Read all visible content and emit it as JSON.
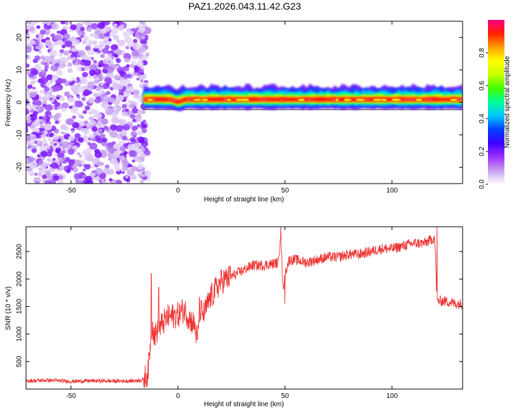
{
  "figure_title": "PAZ1.2026.043.11.42.G23",
  "chart_data": [
    {
      "type": "heatmap",
      "title": "PAZ1.2026.043.11.42.G23",
      "xlabel": "Height of straight line (km)",
      "ylabel": "Frequency (Hz)",
      "xlim": [
        -71,
        133
      ],
      "ylim": [
        -25,
        25
      ],
      "x_ticks": [
        -50,
        0,
        50,
        100
      ],
      "y_ticks": [
        -20,
        -10,
        0,
        10,
        20
      ],
      "colorbar": {
        "label": "Normalized spectral amplitude",
        "range": [
          0,
          1
        ],
        "ticks": [
          "0.0",
          "0.2",
          "0.4",
          "0.6",
          "0.8"
        ],
        "colors": [
          "#ffffff",
          "#c8a0f0",
          "#9b30ff",
          "#3c00ff",
          "#0040ff",
          "#00c8ff",
          "#00ff9c",
          "#40ff00",
          "#c8ff00",
          "#ffff00",
          "#ffa000",
          "#ff2000",
          "#ff0080"
        ]
      },
      "noise_region_km": [
        -71,
        -16
      ],
      "ridge": {
        "start_km": -16,
        "end_km": 133,
        "frequency_hz": 0.8,
        "spread_hz": 3,
        "dip": {
          "at_km": 0,
          "frequency_hz": 0
        }
      }
    },
    {
      "type": "line",
      "xlabel": "Height of straight line (km)",
      "ylabel": "SNR (10 * v/v)",
      "xlim": [
        -71,
        133
      ],
      "ylim": [
        0,
        2950
      ],
      "x_ticks": [
        -50,
        0,
        50,
        100
      ],
      "y_ticks": [
        500,
        1000,
        1500,
        2000,
        2500
      ],
      "series": [
        {
          "name": "SNR",
          "color": "#ee3333",
          "x": [
            -71,
            -60,
            -50,
            -40,
            -30,
            -20,
            -16,
            -14,
            -13,
            -12,
            -11,
            -10,
            -8,
            -5,
            0,
            3,
            5,
            8,
            9,
            10,
            12,
            15,
            20,
            25,
            30,
            35,
            40,
            45,
            47,
            48,
            49,
            50,
            52,
            55,
            60,
            65,
            70,
            75,
            80,
            85,
            90,
            95,
            100,
            105,
            110,
            115,
            120,
            121,
            125,
            130,
            133
          ],
          "y": [
            150,
            160,
            140,
            150,
            145,
            150,
            170,
            300,
            800,
            1200,
            950,
            1050,
            1150,
            1300,
            1350,
            1450,
            1300,
            1150,
            800,
            1450,
            1350,
            1650,
            1950,
            2050,
            2150,
            2250,
            2250,
            2280,
            2300,
            2900,
            1800,
            2100,
            2350,
            2350,
            2300,
            2350,
            2400,
            2400,
            2450,
            2450,
            2500,
            2550,
            2550,
            2600,
            2650,
            2650,
            2750,
            1600,
            1600,
            1550,
            1550
          ],
          "noise_amplitude": 60,
          "spikes": [
            {
              "x": -12.5,
              "y": 2100
            },
            {
              "x": -9,
              "y": 1850
            },
            {
              "x": 48,
              "y": 2950
            },
            {
              "x": 50,
              "y": 1550
            },
            {
              "x": 121,
              "y": 3000
            }
          ]
        }
      ]
    }
  ]
}
